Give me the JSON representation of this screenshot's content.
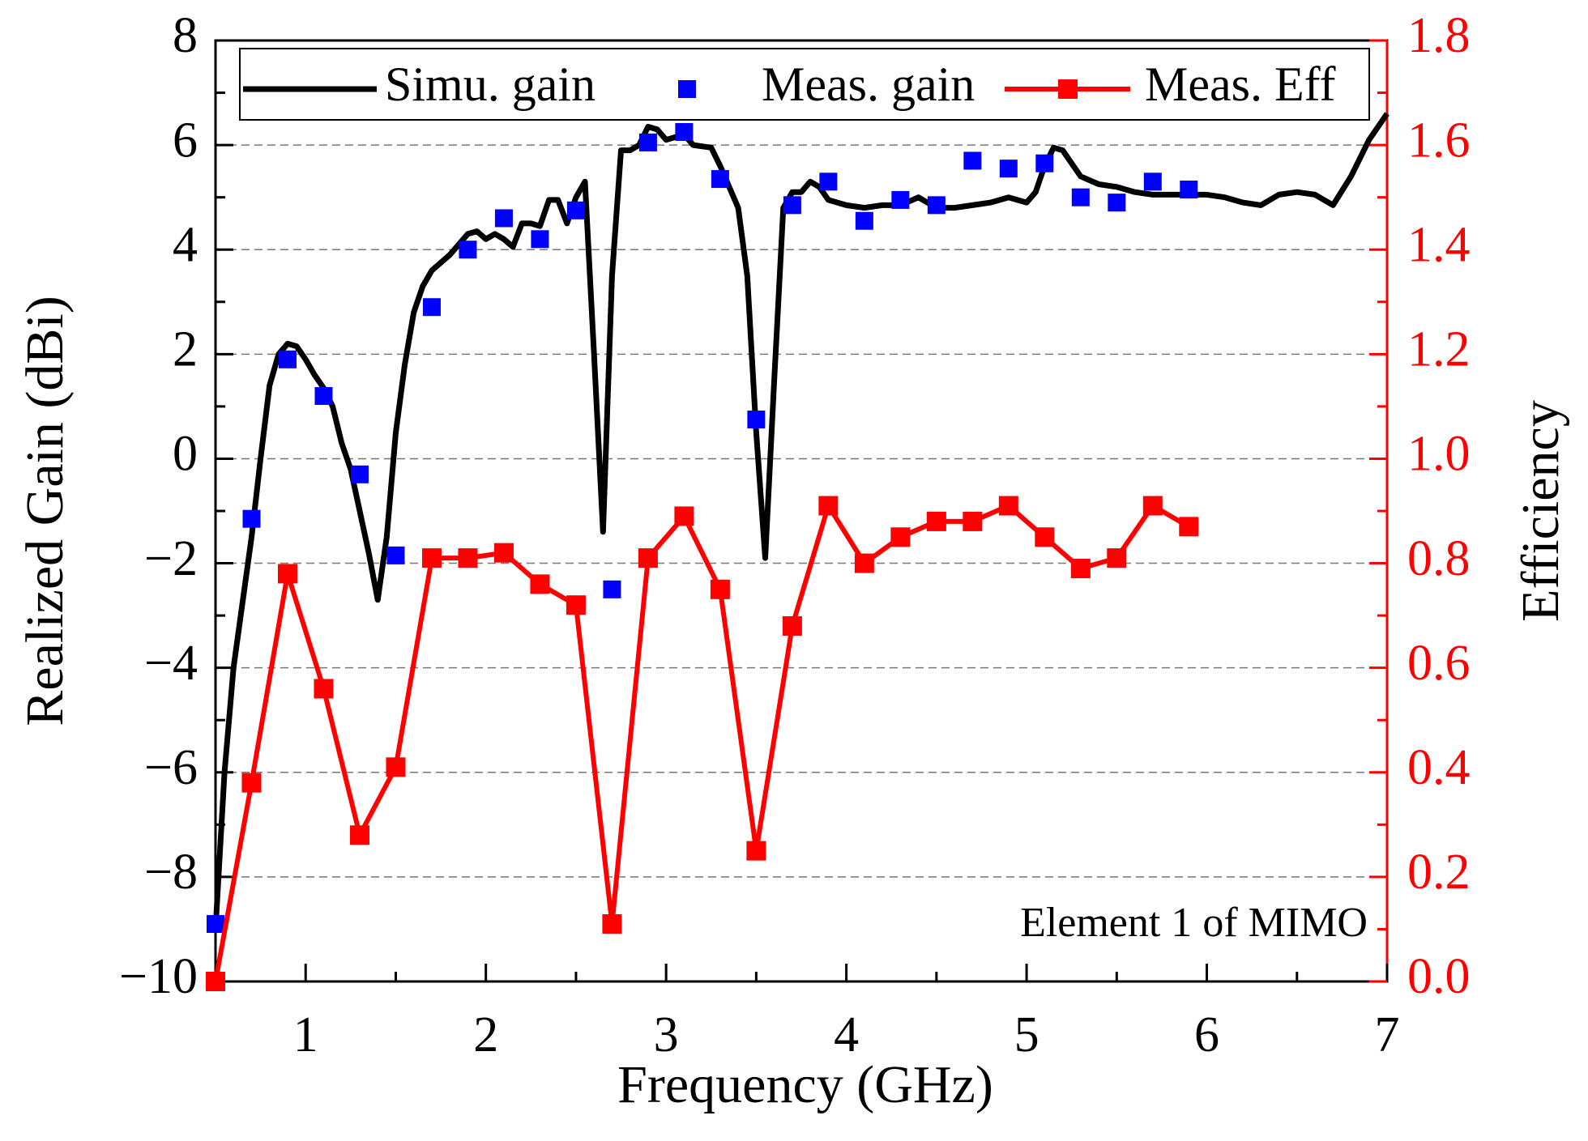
{
  "chart_data": {
    "type": "line",
    "x_label": "Frequency (GHz)",
    "y_label": "Realized Gain (dBi)",
    "y2_label": "Efficiency",
    "annotation": "Element 1 of MIMO",
    "xlim": [
      0.5,
      7
    ],
    "xticks": [
      1,
      2,
      3,
      4,
      5,
      6,
      7
    ],
    "ylim": [
      -10,
      8
    ],
    "yticks": [
      {
        "value": -10,
        "label": "−10"
      },
      {
        "value": -8,
        "label": "−8"
      },
      {
        "value": -6,
        "label": "−6"
      },
      {
        "value": -4,
        "label": "−4"
      },
      {
        "value": -2,
        "label": "−2"
      },
      0,
      2,
      4,
      6,
      8
    ],
    "y2lim": [
      0,
      1.8
    ],
    "y2ticks": [
      {
        "value": 0,
        "label": "0.0"
      },
      0.2,
      0.4,
      0.6,
      0.8,
      {
        "value": 1,
        "label": "1.0"
      },
      1.2,
      1.4,
      1.6,
      1.8
    ],
    "y2_color": "#ff0000",
    "grid": true,
    "legend": "top",
    "series": [
      {
        "name": "Simu. gain",
        "type": "line",
        "color": "#000000",
        "x": [
          0.5,
          0.55,
          0.6,
          0.7,
          0.75,
          0.8,
          0.85,
          0.9,
          0.95,
          1.0,
          1.05,
          1.1,
          1.15,
          1.2,
          1.25,
          1.3,
          1.35,
          1.4,
          1.45,
          1.5,
          1.55,
          1.6,
          1.65,
          1.7,
          1.8,
          1.9,
          1.95,
          2.0,
          2.05,
          2.1,
          2.15,
          2.2,
          2.25,
          2.3,
          2.35,
          2.4,
          2.45,
          2.5,
          2.55,
          2.6,
          2.65,
          2.7,
          2.75,
          2.8,
          2.85,
          2.9,
          2.95,
          3.0,
          3.05,
          3.1,
          3.15,
          3.25,
          3.3,
          3.35,
          3.4,
          3.45,
          3.5,
          3.55,
          3.6,
          3.65,
          3.7,
          3.75,
          3.8,
          3.85,
          3.9,
          4.0,
          4.1,
          4.2,
          4.3,
          4.4,
          4.5,
          4.6,
          4.7,
          4.8,
          4.9,
          5.0,
          5.05,
          5.1,
          5.15,
          5.2,
          5.3,
          5.4,
          5.5,
          5.6,
          5.7,
          5.8,
          6.0,
          6.1,
          6.2,
          6.3,
          6.4,
          6.5,
          6.6,
          6.7,
          6.8,
          6.9,
          7.0
        ],
        "values": [
          -9,
          -6,
          -4,
          -1.5,
          0,
          1.4,
          2,
          2.2,
          2.15,
          1.9,
          1.6,
          1.35,
          1.0,
          0.3,
          -0.2,
          -1,
          -1.8,
          -2.7,
          -1.5,
          0.5,
          1.8,
          2.8,
          3.3,
          3.6,
          3.9,
          4.3,
          4.35,
          4.2,
          4.3,
          4.2,
          4.05,
          4.5,
          4.5,
          4.45,
          4.95,
          4.95,
          4.5,
          5.0,
          5.3,
          2.0,
          -1.4,
          3.5,
          5.9,
          5.9,
          6.0,
          6.35,
          6.3,
          6.1,
          6.15,
          6.2,
          6.0,
          5.95,
          5.6,
          5.2,
          4.8,
          3.5,
          0.5,
          -1.9,
          1.5,
          4.8,
          5.1,
          5.1,
          5.3,
          5.2,
          4.95,
          4.85,
          4.8,
          4.85,
          4.85,
          5.0,
          4.8,
          4.8,
          4.85,
          4.9,
          5.0,
          4.9,
          5.1,
          5.6,
          5.95,
          5.9,
          5.4,
          5.25,
          5.2,
          5.1,
          5.05,
          5.05,
          5.05,
          5.0,
          4.9,
          4.85,
          5.05,
          5.1,
          5.05,
          4.85,
          5.4,
          6.1,
          6.6
        ]
      },
      {
        "name": "Meas. gain",
        "type": "scatter",
        "color": "#0000ff",
        "x": [
          0.5,
          0.7,
          0.9,
          1.1,
          1.3,
          1.5,
          1.7,
          1.9,
          2.1,
          2.3,
          2.5,
          2.7,
          2.9,
          3.1,
          3.3,
          3.5,
          3.7,
          3.9,
          4.1,
          4.3,
          4.5,
          4.7,
          4.9,
          5.1,
          5.3,
          5.5,
          5.7,
          5.9
        ],
        "values": [
          -8.9,
          -1.15,
          1.9,
          1.2,
          -0.3,
          -1.85,
          2.9,
          4.0,
          4.6,
          4.2,
          4.75,
          -2.5,
          6.05,
          6.25,
          5.35,
          0.75,
          4.85,
          5.3,
          4.55,
          4.95,
          4.85,
          5.7,
          5.55,
          5.65,
          5.0,
          4.9,
          5.3,
          5.15
        ]
      },
      {
        "name": "Meas. Eff",
        "type": "line-marker",
        "color": "#ff0000",
        "axis": "y2",
        "x": [
          0.5,
          0.7,
          0.9,
          1.1,
          1.3,
          1.5,
          1.7,
          1.9,
          2.1,
          2.3,
          2.5,
          2.7,
          2.9,
          3.1,
          3.3,
          3.5,
          3.7,
          3.9,
          4.1,
          4.3,
          4.5,
          4.7,
          4.9,
          5.1,
          5.3,
          5.5,
          5.7,
          5.9
        ],
        "values": [
          0.0,
          0.38,
          0.78,
          0.56,
          0.28,
          0.41,
          0.81,
          0.81,
          0.82,
          0.76,
          0.72,
          0.11,
          0.81,
          0.89,
          0.75,
          0.25,
          0.68,
          0.91,
          0.8,
          0.85,
          0.88,
          0.88,
          0.91,
          0.85,
          0.79,
          0.81,
          0.91,
          0.87
        ]
      }
    ]
  }
}
